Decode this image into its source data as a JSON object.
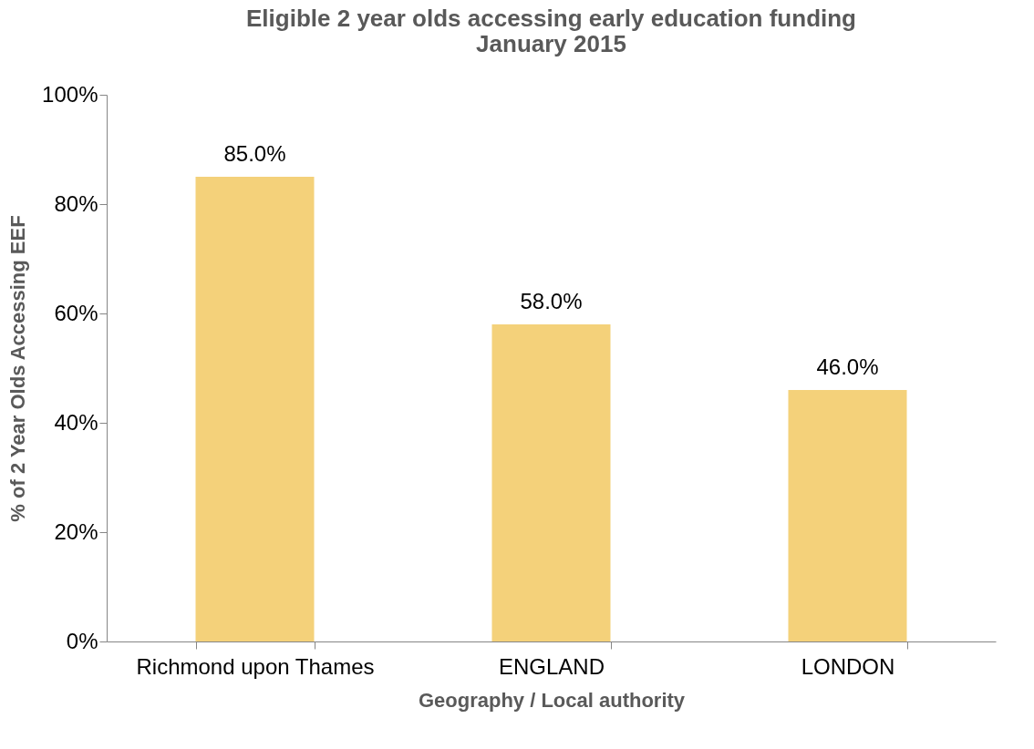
{
  "chart_data": {
    "type": "bar",
    "title": "Eligible 2 year olds accessing early education funding\nJanuary 2015",
    "xlabel": "Geography / Local authority",
    "ylabel": "% of 2 Year Olds Accessing EEF",
    "categories": [
      "Richmond upon Thames",
      "ENGLAND",
      "LONDON"
    ],
    "values": [
      85,
      58,
      46
    ],
    "value_labels": [
      "85.0%",
      "58.0%",
      "46.0%"
    ],
    "color": "#f4d17a",
    "ylim": [
      0,
      100
    ],
    "yticks": [
      {
        "value": 0,
        "label": "0%"
      },
      {
        "value": 20,
        "label": "20%"
      },
      {
        "value": 40,
        "label": "40%"
      },
      {
        "value": 60,
        "label": "60%"
      },
      {
        "value": 80,
        "label": "80%"
      },
      {
        "value": 100,
        "label": "100%"
      }
    ],
    "grid": false
  }
}
